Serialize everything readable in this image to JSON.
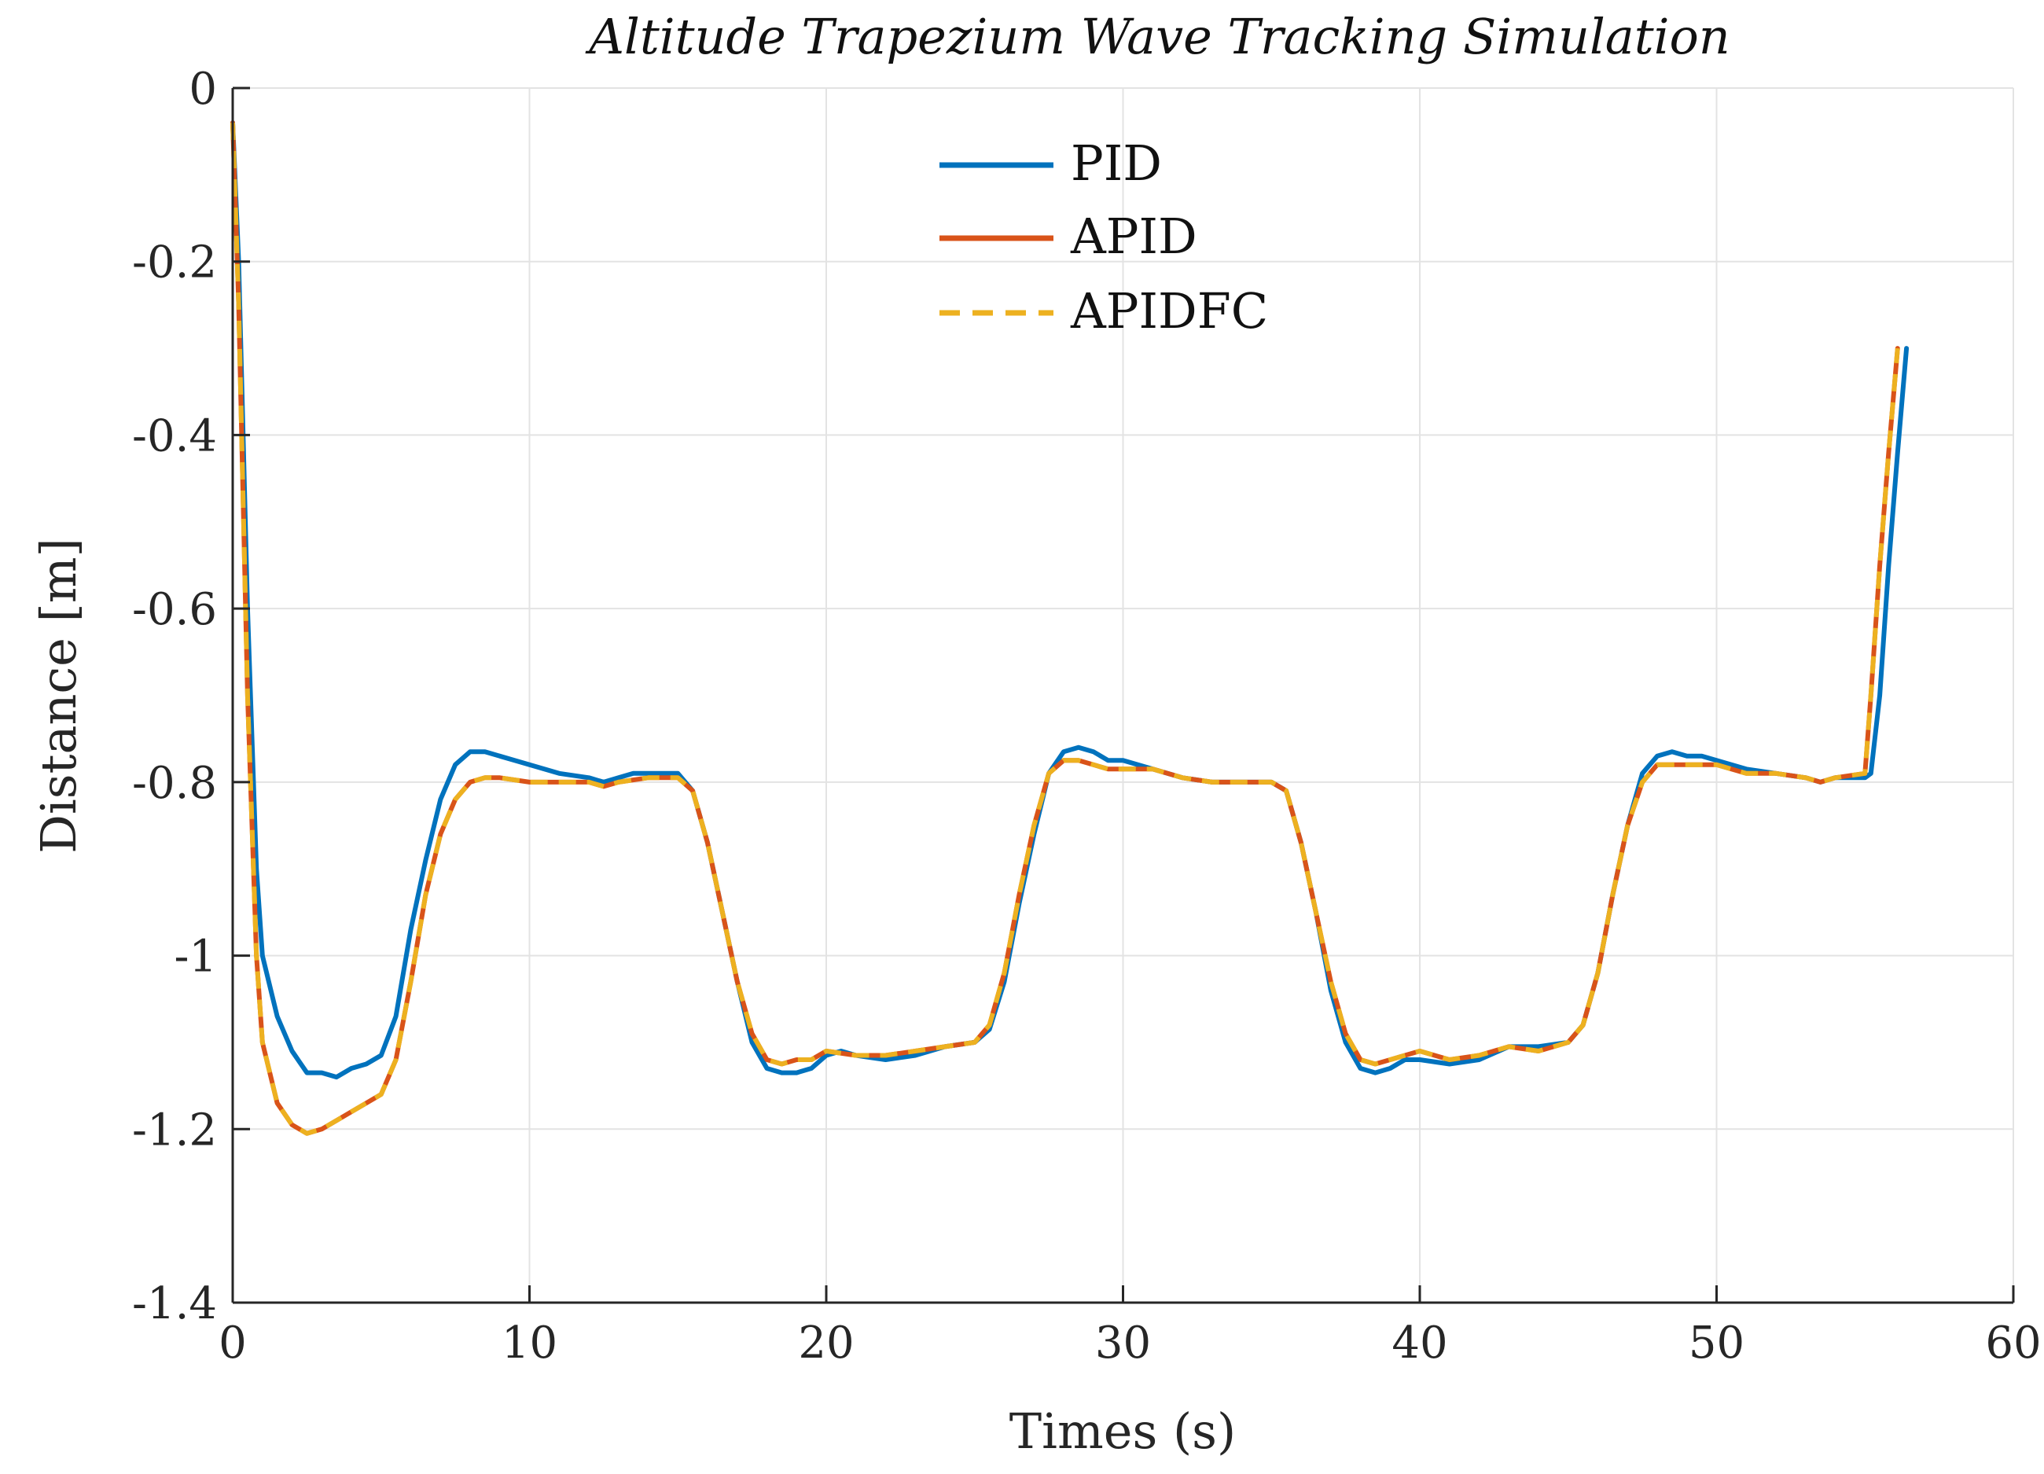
{
  "chart_data": {
    "type": "line",
    "title": "Altitude Trapezium Wave Tracking Simulation",
    "xlabel": "Times (s)",
    "ylabel": "Distance [m]",
    "xlim": [
      0,
      60
    ],
    "ylim": [
      -1.4,
      0
    ],
    "xticks": [
      0,
      10,
      20,
      30,
      40,
      50,
      60
    ],
    "yticks": [
      0,
      -0.2,
      -0.4,
      -0.6,
      -0.8,
      -1,
      -1.2,
      -1.4
    ],
    "xtick_labels": [
      "0",
      "10",
      "20",
      "30",
      "40",
      "50",
      "60"
    ],
    "ytick_labels": [
      "0",
      "-0.2",
      "-0.4",
      "-0.6",
      "-0.8",
      "-1",
      "-1.2",
      "-1.4"
    ],
    "grid": true,
    "legend_position": "top-center",
    "series": [
      {
        "name": "PID",
        "color": "#0072BD",
        "dash": "solid",
        "x": [
          0,
          0.2,
          0.5,
          0.8,
          1.0,
          1.5,
          2.0,
          2.5,
          3.0,
          3.5,
          4.0,
          4.5,
          5.0,
          5.5,
          6.0,
          6.5,
          7.0,
          7.5,
          8.0,
          8.5,
          9.0,
          9.5,
          10,
          10.5,
          11,
          12,
          12.5,
          13,
          13.5,
          14,
          15,
          15.5,
          16,
          16.5,
          17,
          17.5,
          18,
          18.5,
          19,
          19.5,
          20,
          20.5,
          21,
          22,
          23,
          24,
          25,
          25.5,
          26,
          26.5,
          27,
          27.5,
          28,
          28.5,
          29,
          29.5,
          30,
          31,
          32,
          33,
          34,
          35,
          35.5,
          36,
          36.5,
          37,
          37.5,
          38,
          38.5,
          39,
          39.5,
          40,
          41,
          42,
          43,
          44,
          45,
          45.5,
          46,
          46.5,
          47,
          47.5,
          48,
          48.5,
          49,
          49.5,
          50,
          51,
          52,
          53,
          53.5,
          54,
          55,
          55.2,
          55.5,
          55.8,
          56.1,
          56.4
        ],
        "y": [
          -0.04,
          -0.2,
          -0.6,
          -0.9,
          -1.0,
          -1.07,
          -1.11,
          -1.135,
          -1.135,
          -1.14,
          -1.13,
          -1.125,
          -1.115,
          -1.07,
          -0.97,
          -0.89,
          -0.82,
          -0.78,
          -0.765,
          -0.765,
          -0.77,
          -0.775,
          -0.78,
          -0.785,
          -0.79,
          -0.795,
          -0.8,
          -0.795,
          -0.79,
          -0.79,
          -0.79,
          -0.81,
          -0.87,
          -0.95,
          -1.03,
          -1.1,
          -1.13,
          -1.135,
          -1.135,
          -1.13,
          -1.115,
          -1.11,
          -1.115,
          -1.12,
          -1.115,
          -1.105,
          -1.1,
          -1.085,
          -1.03,
          -0.94,
          -0.86,
          -0.79,
          -0.765,
          -0.76,
          -0.765,
          -0.775,
          -0.775,
          -0.785,
          -0.795,
          -0.8,
          -0.8,
          -0.8,
          -0.81,
          -0.87,
          -0.95,
          -1.04,
          -1.1,
          -1.13,
          -1.135,
          -1.13,
          -1.12,
          -1.12,
          -1.125,
          -1.12,
          -1.105,
          -1.105,
          -1.1,
          -1.08,
          -1.02,
          -0.93,
          -0.85,
          -0.79,
          -0.77,
          -0.765,
          -0.77,
          -0.77,
          -0.775,
          -0.785,
          -0.79,
          -0.795,
          -0.8,
          -0.795,
          -0.795,
          -0.79,
          -0.7,
          -0.55,
          -0.42,
          -0.3
        ]
      },
      {
        "name": "APID",
        "color": "#D95319",
        "dash": "solid",
        "x": [
          0,
          0.2,
          0.5,
          0.8,
          1.0,
          1.5,
          2.0,
          2.5,
          3.0,
          3.5,
          4.0,
          4.5,
          5.0,
          5.5,
          6.0,
          6.5,
          7.0,
          7.5,
          8.0,
          8.5,
          9.0,
          10,
          11,
          12,
          12.5,
          13,
          14,
          15,
          15.5,
          16,
          16.5,
          17,
          17.5,
          18,
          18.5,
          19,
          19.5,
          20,
          21,
          22,
          23,
          24,
          25,
          25.5,
          26,
          26.5,
          27,
          27.5,
          28,
          28.5,
          29,
          29.5,
          30,
          31,
          32,
          33,
          34,
          35,
          35.5,
          36,
          36.5,
          37,
          37.5,
          38,
          38.5,
          39,
          39.5,
          40,
          41,
          42,
          43,
          44,
          45,
          45.5,
          46,
          46.5,
          47,
          47.5,
          48,
          48.5,
          49,
          50,
          51,
          52,
          53,
          53.5,
          54,
          55,
          55.2,
          55.5,
          55.8,
          56.1
        ],
        "y": [
          -0.04,
          -0.25,
          -0.7,
          -1.0,
          -1.1,
          -1.17,
          -1.195,
          -1.205,
          -1.2,
          -1.19,
          -1.18,
          -1.17,
          -1.16,
          -1.12,
          -1.03,
          -0.93,
          -0.86,
          -0.82,
          -0.8,
          -0.795,
          -0.795,
          -0.8,
          -0.8,
          -0.8,
          -0.805,
          -0.8,
          -0.795,
          -0.795,
          -0.81,
          -0.87,
          -0.95,
          -1.03,
          -1.09,
          -1.12,
          -1.125,
          -1.12,
          -1.12,
          -1.11,
          -1.115,
          -1.115,
          -1.11,
          -1.105,
          -1.1,
          -1.08,
          -1.02,
          -0.93,
          -0.85,
          -0.79,
          -0.775,
          -0.775,
          -0.78,
          -0.785,
          -0.785,
          -0.785,
          -0.795,
          -0.8,
          -0.8,
          -0.8,
          -0.81,
          -0.87,
          -0.95,
          -1.03,
          -1.09,
          -1.12,
          -1.125,
          -1.12,
          -1.115,
          -1.11,
          -1.12,
          -1.115,
          -1.105,
          -1.11,
          -1.1,
          -1.08,
          -1.02,
          -0.93,
          -0.85,
          -0.8,
          -0.78,
          -0.78,
          -0.78,
          -0.78,
          -0.79,
          -0.79,
          -0.795,
          -0.8,
          -0.795,
          -0.79,
          -0.7,
          -0.55,
          -0.42,
          -0.3
        ]
      },
      {
        "name": "APIDFC",
        "color": "#EDB120",
        "dash": "dashed",
        "x": [
          0,
          0.2,
          0.5,
          0.8,
          1.0,
          1.5,
          2.0,
          2.5,
          3.0,
          3.5,
          4.0,
          4.5,
          5.0,
          5.5,
          6.0,
          6.5,
          7.0,
          7.5,
          8.0,
          8.5,
          9.0,
          10,
          11,
          12,
          12.5,
          13,
          14,
          15,
          15.5,
          16,
          16.5,
          17,
          17.5,
          18,
          18.5,
          19,
          19.5,
          20,
          21,
          22,
          23,
          24,
          25,
          25.5,
          26,
          26.5,
          27,
          27.5,
          28,
          28.5,
          29,
          29.5,
          30,
          31,
          32,
          33,
          34,
          35,
          35.5,
          36,
          36.5,
          37,
          37.5,
          38,
          38.5,
          39,
          39.5,
          40,
          41,
          42,
          43,
          44,
          45,
          45.5,
          46,
          46.5,
          47,
          47.5,
          48,
          48.5,
          49,
          50,
          51,
          52,
          53,
          53.5,
          54,
          55,
          55.2,
          55.5,
          55.8,
          56.1
        ],
        "y": [
          -0.04,
          -0.25,
          -0.7,
          -1.0,
          -1.1,
          -1.17,
          -1.195,
          -1.205,
          -1.2,
          -1.19,
          -1.18,
          -1.17,
          -1.16,
          -1.12,
          -1.03,
          -0.93,
          -0.86,
          -0.82,
          -0.8,
          -0.795,
          -0.795,
          -0.8,
          -0.8,
          -0.8,
          -0.805,
          -0.8,
          -0.795,
          -0.795,
          -0.81,
          -0.87,
          -0.95,
          -1.03,
          -1.09,
          -1.12,
          -1.125,
          -1.12,
          -1.12,
          -1.11,
          -1.115,
          -1.115,
          -1.11,
          -1.105,
          -1.1,
          -1.08,
          -1.02,
          -0.93,
          -0.85,
          -0.79,
          -0.775,
          -0.775,
          -0.78,
          -0.785,
          -0.785,
          -0.785,
          -0.795,
          -0.8,
          -0.8,
          -0.8,
          -0.81,
          -0.87,
          -0.95,
          -1.03,
          -1.09,
          -1.12,
          -1.125,
          -1.12,
          -1.115,
          -1.11,
          -1.12,
          -1.115,
          -1.105,
          -1.11,
          -1.1,
          -1.08,
          -1.02,
          -0.93,
          -0.85,
          -0.8,
          -0.78,
          -0.78,
          -0.78,
          -0.78,
          -0.79,
          -0.79,
          -0.795,
          -0.8,
          -0.795,
          -0.79,
          -0.7,
          -0.55,
          -0.42,
          -0.3
        ]
      }
    ]
  }
}
